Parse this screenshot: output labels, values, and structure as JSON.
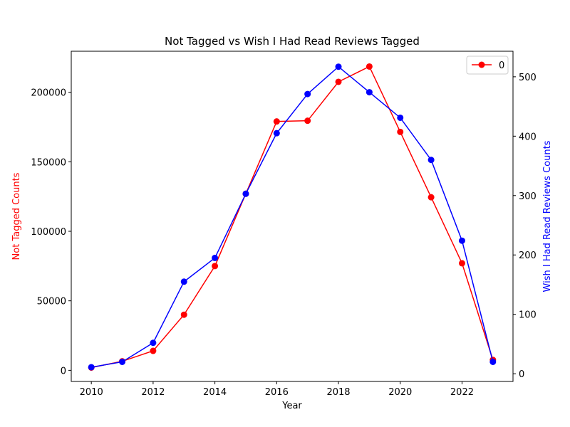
{
  "chart_data": {
    "type": "line",
    "title": "Not Tagged vs Wish I Had Read Reviews Tagged",
    "xlabel": "Year",
    "x": [
      2010,
      2011,
      2012,
      2013,
      2014,
      2015,
      2016,
      2017,
      2018,
      2019,
      2020,
      2021,
      2022,
      2023
    ],
    "xlim": [
      2009.35,
      2023.65
    ],
    "x_ticks": [
      2010,
      2012,
      2014,
      2016,
      2018,
      2020,
      2022
    ],
    "left_axis": {
      "label": "Not Tagged Counts",
      "color": "#ff0000",
      "ylim": [
        -8000,
        229500
      ],
      "ticks": [
        0,
        50000,
        100000,
        150000,
        200000
      ]
    },
    "right_axis": {
      "label": "Wish I Had Read Reviews Counts",
      "color": "#0000ff",
      "ylim": [
        -13,
        543
      ],
      "ticks": [
        0,
        100,
        200,
        300,
        400,
        500
      ]
    },
    "series": [
      {
        "axis": "left",
        "color": "#ff0000",
        "values": [
          2000,
          6500,
          14000,
          40000,
          75000,
          127000,
          179000,
          179500,
          207500,
          218500,
          171500,
          124500,
          77000,
          7500
        ]
      },
      {
        "axis": "right",
        "color": "#0000ff",
        "values": [
          11,
          20,
          52,
          155,
          195,
          303,
          405,
          471,
          517,
          474,
          431,
          360,
          224,
          20
        ]
      }
    ],
    "legend": {
      "placement": "top-right",
      "entries": [
        {
          "label": "0",
          "color": "#ff0000"
        }
      ]
    },
    "grid": false
  }
}
